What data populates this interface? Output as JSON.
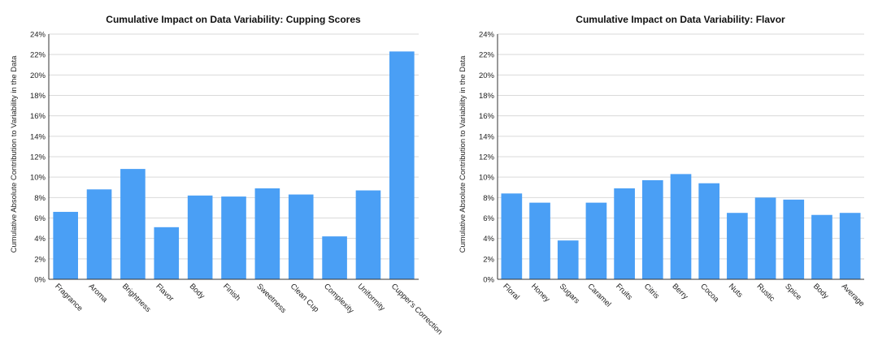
{
  "chart_data": [
    {
      "type": "bar",
      "title": "Cumulative Impact on Data Variability: Cupping Scores",
      "xlabel": "",
      "ylabel": "Cumulative Absolute Contribution to Variability in the Data",
      "ylim": [
        0,
        24
      ],
      "y_ticks": [
        "0%",
        "2%",
        "4%",
        "6%",
        "8%",
        "10%",
        "12%",
        "14%",
        "16%",
        "18%",
        "20%",
        "22%",
        "24%"
      ],
      "grid": true,
      "categories": [
        "Fragrance",
        "Aroma",
        "Brightness",
        "Flavor",
        "Body",
        "Finish",
        "Sweetness",
        "Clean Cup",
        "Complexity",
        "Uniformity",
        "Cupper's Correction"
      ],
      "values": [
        6.6,
        8.8,
        10.8,
        5.1,
        8.2,
        8.1,
        8.9,
        8.3,
        4.2,
        8.7,
        22.3
      ],
      "color": "#4a9ff5"
    },
    {
      "type": "bar",
      "title": "Cumulative Impact on Data Variability: Flavor",
      "xlabel": "",
      "ylabel": "Cumulative Absolute Contribution to Variability in the Data",
      "ylim": [
        0,
        24
      ],
      "y_ticks": [
        "0%",
        "2%",
        "4%",
        "6%",
        "8%",
        "10%",
        "12%",
        "14%",
        "16%",
        "18%",
        "20%",
        "22%",
        "24%"
      ],
      "grid": true,
      "categories": [
        "Floral",
        "Honey",
        "Sugars",
        "Caramel",
        "Fruits",
        "Citris",
        "Berry",
        "Cocoa",
        "Nuts",
        "Rustic",
        "Spice",
        "Body",
        "Average"
      ],
      "values": [
        8.4,
        7.5,
        3.8,
        7.5,
        8.9,
        9.7,
        10.3,
        9.4,
        6.5,
        8.0,
        7.8,
        6.3,
        6.5
      ],
      "color": "#4a9ff5"
    }
  ]
}
